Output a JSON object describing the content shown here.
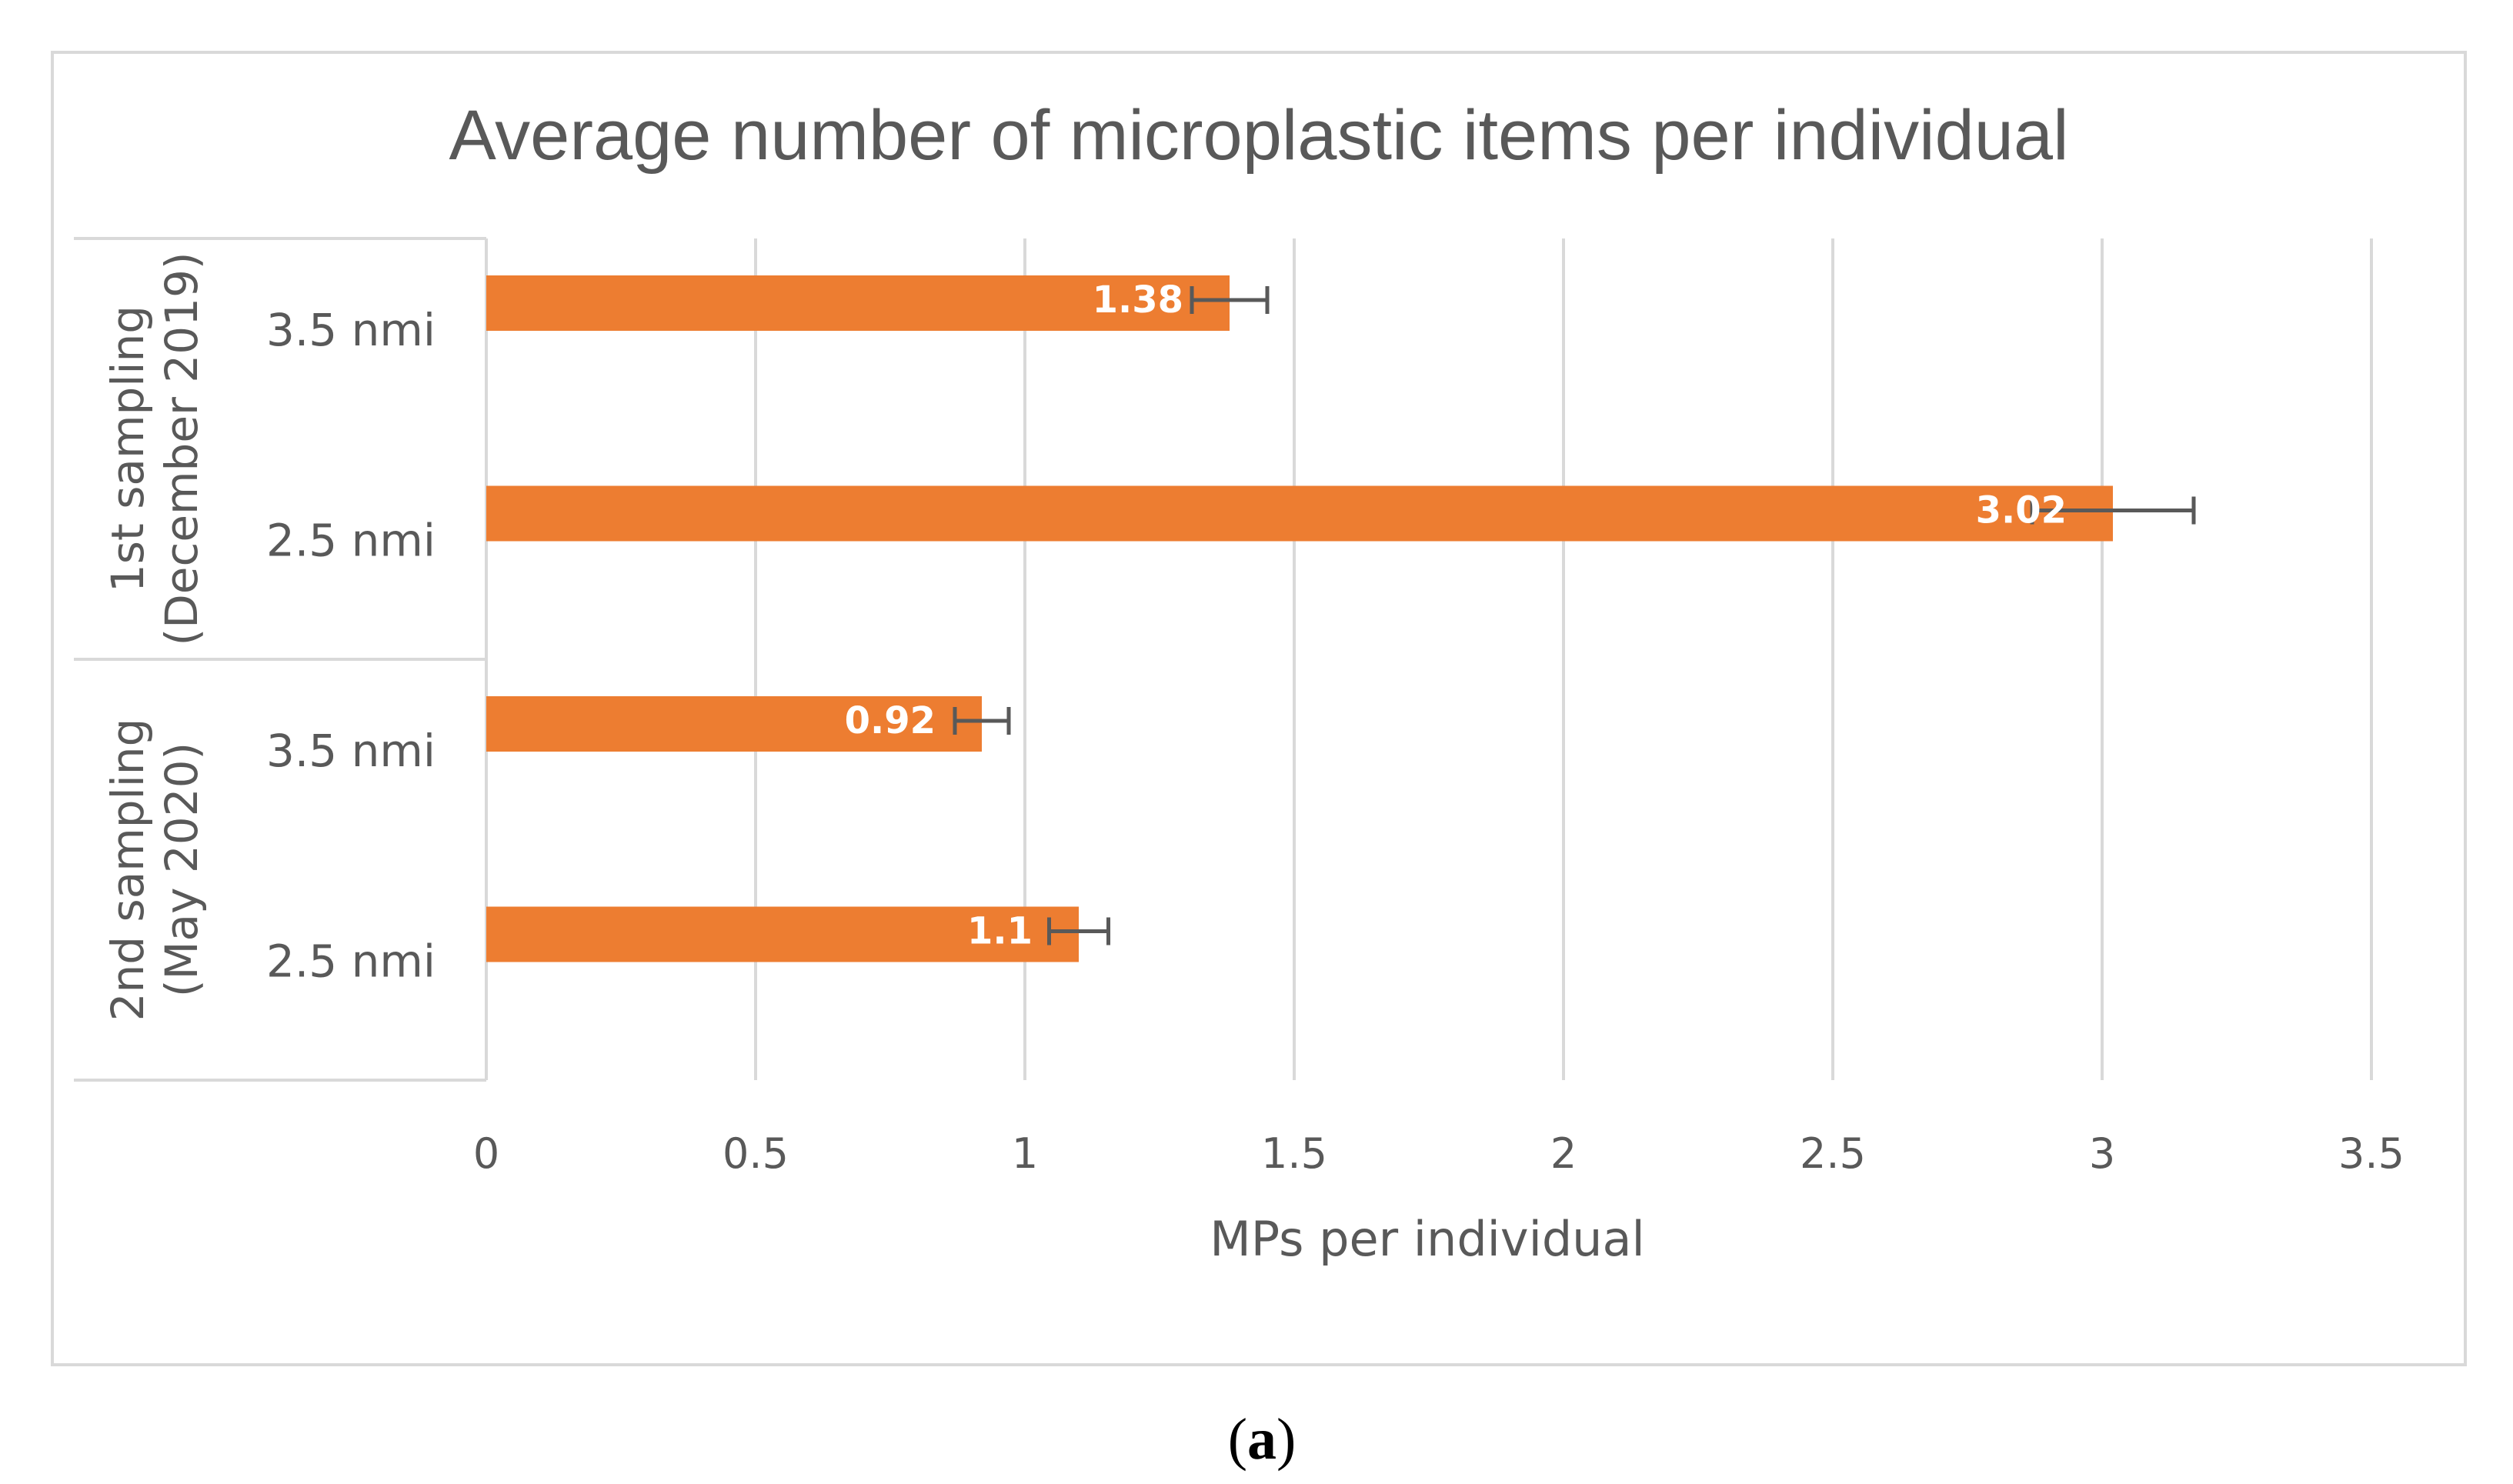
{
  "chart_data": {
    "type": "bar",
    "orientation": "horizontal",
    "title": "Average number of microplastic items per individual",
    "xlabel": "MPs per individual",
    "ylabel": "",
    "xlim": [
      0,
      3.5
    ],
    "x_ticks": [
      "0",
      "0.5",
      "1",
      "1.5",
      "2",
      "2.5",
      "3",
      "3.5"
    ],
    "x_tick_values": [
      0,
      0.5,
      1,
      1.5,
      2,
      2.5,
      3,
      3.5
    ],
    "grid": true,
    "legend": "none",
    "bar_color": "#ED7D31",
    "groups": [
      {
        "label_line1": "1st sampling",
        "label_line2": "(December 2019)",
        "categories": [
          {
            "label": "3.5 nmi",
            "value": 1.38,
            "value_label": "1.38",
            "error": 0.07
          },
          {
            "label": "2.5 nmi",
            "value": 3.02,
            "value_label": "3.02",
            "error": 0.15
          }
        ]
      },
      {
        "label_line1": "2nd sampling",
        "label_line2": "(May 2020)",
        "categories": [
          {
            "label": "3.5 nmi",
            "value": 0.92,
            "value_label": "0.92",
            "error": 0.05
          },
          {
            "label": "2.5 nmi",
            "value": 1.1,
            "value_label": "1.1",
            "error": 0.055
          }
        ]
      }
    ]
  },
  "caption": {
    "open": "(",
    "letter": "a",
    "close": ")"
  }
}
